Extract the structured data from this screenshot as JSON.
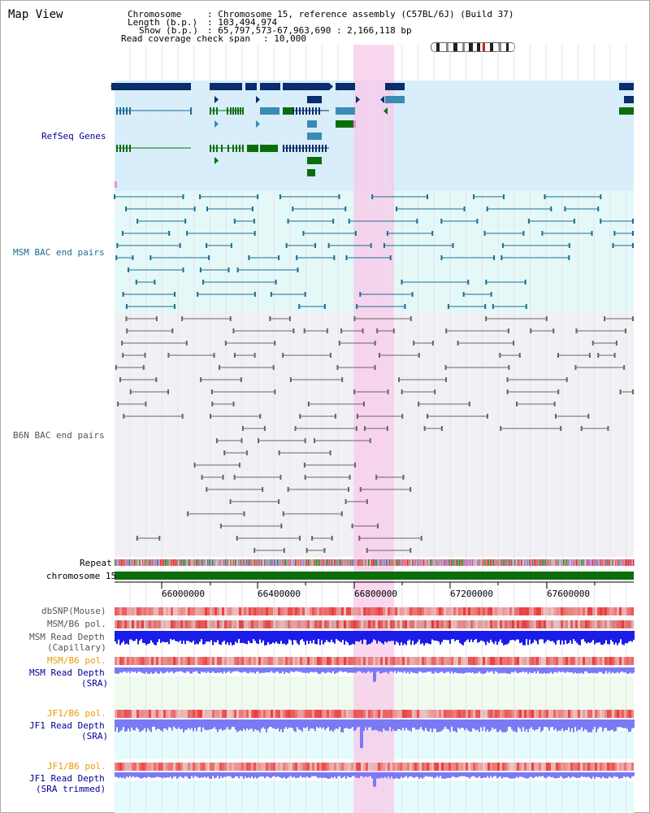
{
  "title": "Map View",
  "header": {
    "chromosome_label": "Chromosome",
    "chromosome_value": ": Chromosome 15, reference assembly (C57BL/6J) (Build 37)",
    "length_label": "Length (b.p.)",
    "length_value": ": 103,494,974",
    "show_label": "Show (b.p.)",
    "show_value": ": 65,797,573-67,963,690 : 2,166,118 bp",
    "coverage_label": "Read coverage check span",
    "coverage_value": ": 10,000"
  },
  "tracks": {
    "refseq": "RefSeq Genes",
    "msm_bac": "MSM BAC end pairs",
    "b6n_bac": "B6N BAC end pairs",
    "repeat": "Repeat",
    "chromosome": "chromosome 15",
    "dbsnp": "dbSNP(Mouse)",
    "msm_b6_pol_1": "MSM/B6 pol.",
    "msm_read_depth_cap_1": "MSM Read Depth",
    "msm_read_depth_cap_2": "(Capillary)",
    "msm_b6_pol_2": "MSM/B6 pol.",
    "msm_read_depth_sra_1": "MSM Read Depth",
    "msm_read_depth_sra_2": "(SRA)",
    "jf1_b6_pol_1": "JF1/B6 pol.",
    "jf1_read_depth_sra_1": "JF1 Read Depth",
    "jf1_read_depth_sra_2": "(SRA)",
    "jf1_b6_pol_2": "JF1/B6 pol.",
    "jf1_read_depth_trim_1": "JF1 Read Depth",
    "jf1_read_depth_trim_2": "(SRA trimmed)"
  },
  "axis_ticks": [
    "66000000",
    "66400000",
    "66800000",
    "67200000",
    "67600000"
  ],
  "colors": {
    "navy": "#0a2d6b",
    "teal": "#3a8bb5",
    "green": "#0b6e0b",
    "msm_line": "#1a6e93",
    "b6n_line": "#666666",
    "refseq_bg": "#d8eefa",
    "msm_bg": "#e4f8f8",
    "b6n_bg": "#f1f1f5",
    "highlight": "#f9c8ea",
    "depth_blue": "#1c1ce8",
    "depth_light": "#7a7af5",
    "label_blue": "#000099",
    "label_orange": "#e89a00",
    "label_teal": "#1a6e93"
  }
}
